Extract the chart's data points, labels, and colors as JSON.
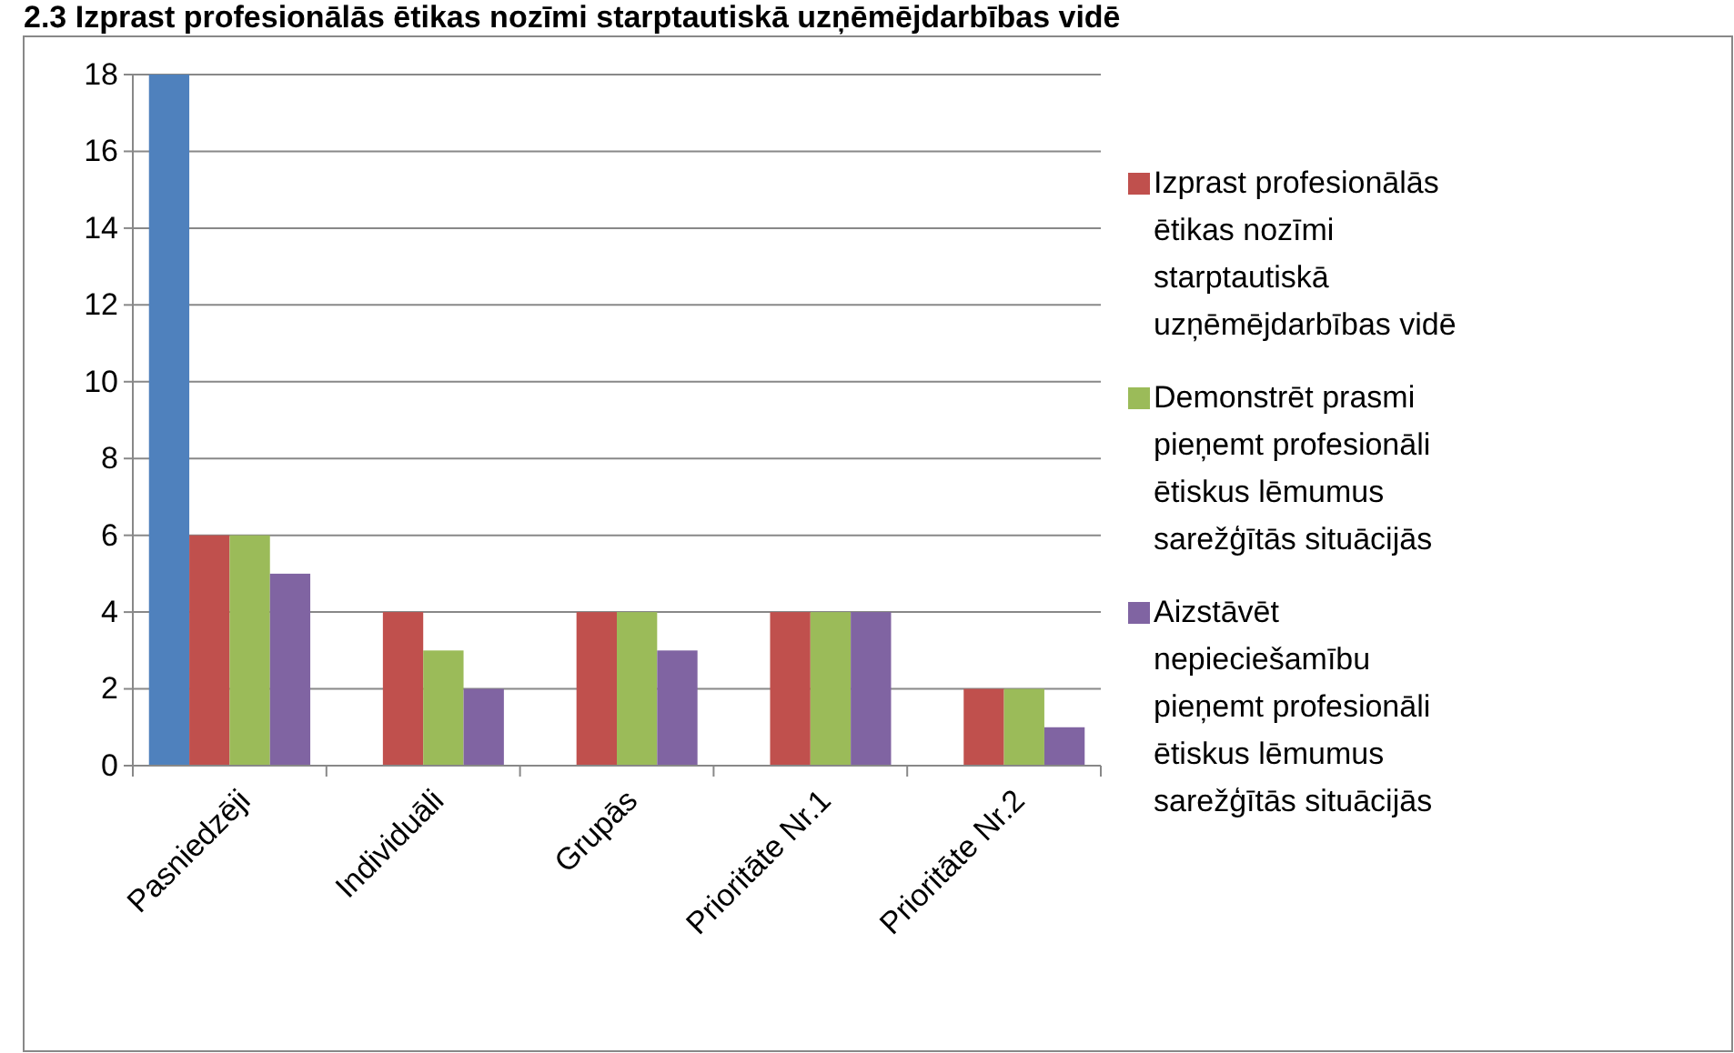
{
  "chart_data": {
    "type": "bar",
    "title": "2.3 Izprast profesionālās ētikas nozīmi starptautiskā uzņēmējdarbības vidē",
    "categories": [
      "Pasniedzēji",
      "Individuāli",
      "Grupās",
      "Prioritāte Nr.1",
      "Prioritāte Nr.2"
    ],
    "series": [
      {
        "color": "#4f81bd",
        "values": [
          18,
          null,
          null,
          null,
          null
        ]
      },
      {
        "name": "Izprast profesionālās ētikas nozīmi starptautiskā uzņēmējdarbības vidē",
        "color": "#c0504d",
        "values": [
          6,
          4,
          4,
          4,
          2
        ]
      },
      {
        "name": "Demonstrēt prasmi pieņemt profesionāli ētiskus lēmumus sarežģītās situācijās",
        "color": "#9bbb59",
        "values": [
          6,
          3,
          4,
          4,
          2
        ]
      },
      {
        "name": "Aizstāvēt nepieciešamību pieņemt profesionāli ētiskus lēmumus sarežģītās situācijās",
        "color": "#8064a2",
        "values": [
          5,
          2,
          3,
          4,
          1
        ]
      }
    ],
    "ylim": [
      0,
      18
    ],
    "yticks": [
      0,
      2,
      4,
      6,
      8,
      10,
      12,
      14,
      16,
      18
    ],
    "grid": "y",
    "legend": "right"
  }
}
